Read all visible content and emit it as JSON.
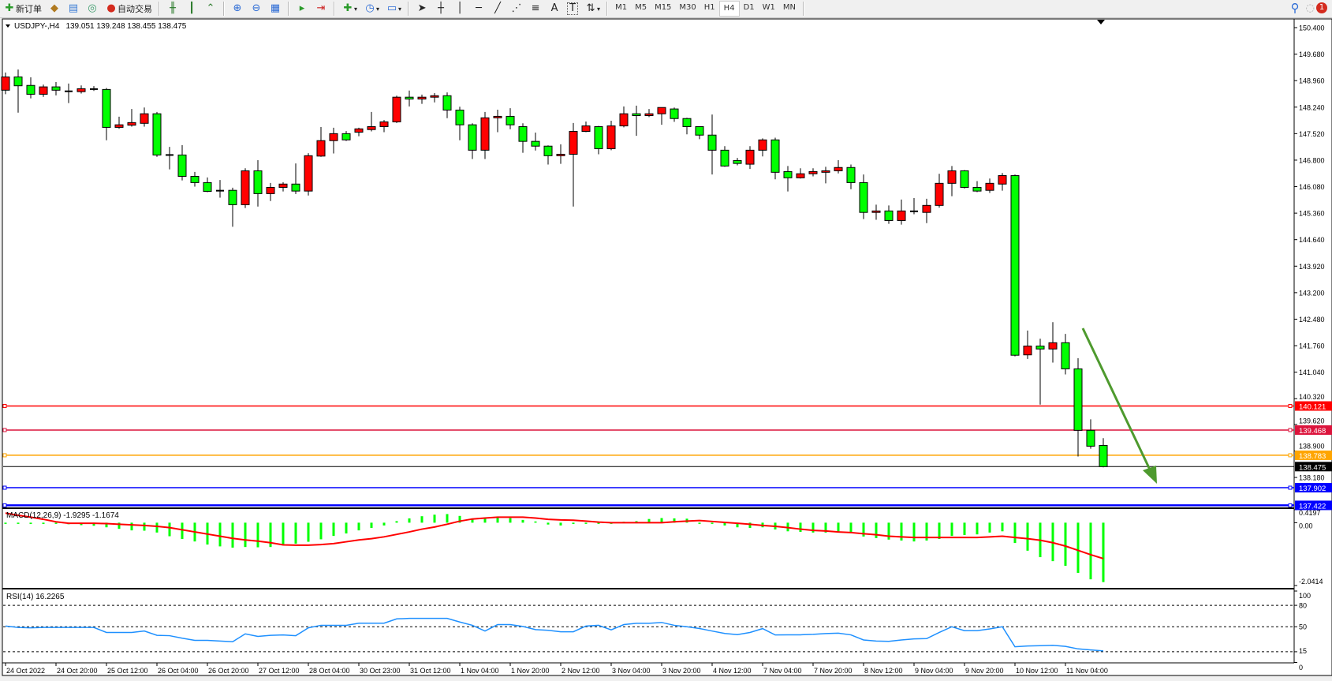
{
  "toolbar": {
    "new_order_label": "新订单",
    "auto_trading_label": "自动交易",
    "icons": [
      "new-order-icon",
      "metaeditor-icon",
      "navigator-icon",
      "signals-icon",
      "auto-trading-icon",
      "bar-chart-icon",
      "candlestick-icon",
      "line-chart-icon",
      "zoom-in-icon",
      "zoom-out-icon",
      "tile-windows-icon",
      "chart-shift-icon",
      "autoscroll-icon",
      "indicators-icon",
      "periods-icon",
      "templates-icon",
      "cursor-icon",
      "crosshair-icon",
      "vertical-line-icon",
      "horizontal-line-icon",
      "trendline-icon",
      "fibonacci-fan-icon",
      "fibonacci-icon",
      "text-icon",
      "text-label-icon",
      "arrows-icon"
    ],
    "text_tool": "A",
    "label_tool": "T",
    "timeframes": [
      "M1",
      "M5",
      "M15",
      "M30",
      "H1",
      "H4",
      "D1",
      "W1",
      "MN"
    ],
    "active_timeframe": "H4",
    "notification_count": "1"
  },
  "chart": {
    "symbol_label": "USDJPY-,H4",
    "ohlc_label": "139.051 139.248 138.455 138.475",
    "bull_color": "#ff0000",
    "bear_color": "#00ff00",
    "price_ticks": [
      "150.400",
      "149.680",
      "148.960",
      "148.240",
      "147.520",
      "146.800",
      "146.080",
      "145.360",
      "144.640",
      "143.920",
      "143.200",
      "142.480",
      "141.760",
      "141.040",
      "140.320",
      "139.620",
      "138.900",
      "138.180"
    ],
    "levels": [
      {
        "price": 140.121,
        "label": "140.121",
        "color": "#ff0000"
      },
      {
        "price": 139.468,
        "label": "139.468",
        "color": "#dc143c"
      },
      {
        "price": 138.783,
        "label": "138.783",
        "color": "#ffa500"
      },
      {
        "price": 137.902,
        "label": "137.902",
        "color": "#0000ff"
      },
      {
        "price": 137.422,
        "label": "137.422",
        "color": "#0000ff"
      }
    ],
    "current_price": {
      "price": 138.475,
      "label": "138.475"
    },
    "trend_arrow_color": "#4e9a2e",
    "candles": [
      [
        148.7,
        149.18,
        148.59,
        149.06
      ],
      [
        149.06,
        149.26,
        148.09,
        148.82
      ],
      [
        148.83,
        149.05,
        148.48,
        148.59
      ],
      [
        148.59,
        148.85,
        148.52,
        148.79
      ],
      [
        148.79,
        148.92,
        148.56,
        148.7
      ],
      [
        148.67,
        148.88,
        148.35,
        148.67
      ],
      [
        148.66,
        148.83,
        148.61,
        148.74
      ],
      [
        148.73,
        148.81,
        148.68,
        148.73
      ],
      [
        148.72,
        148.76,
        147.34,
        147.69
      ],
      [
        147.69,
        147.98,
        147.65,
        147.76
      ],
      [
        147.75,
        148.19,
        147.71,
        147.82
      ],
      [
        147.8,
        148.23,
        147.71,
        148.06
      ],
      [
        148.06,
        148.11,
        146.89,
        146.94
      ],
      [
        146.94,
        147.16,
        146.55,
        146.94
      ],
      [
        146.94,
        147.21,
        146.25,
        146.36
      ],
      [
        146.36,
        146.48,
        146.08,
        146.19
      ],
      [
        146.19,
        146.33,
        145.93,
        145.95
      ],
      [
        145.97,
        146.26,
        145.78,
        145.97
      ],
      [
        145.98,
        146.05,
        144.99,
        145.59
      ],
      [
        145.59,
        146.58,
        145.5,
        146.51
      ],
      [
        146.51,
        146.8,
        145.54,
        145.89
      ],
      [
        145.89,
        146.18,
        145.69,
        146.06
      ],
      [
        146.06,
        146.2,
        145.95,
        146.15
      ],
      [
        146.15,
        146.71,
        145.88,
        145.96
      ],
      [
        145.96,
        146.99,
        145.84,
        146.92
      ],
      [
        146.91,
        147.7,
        146.89,
        147.33
      ],
      [
        147.33,
        147.68,
        146.98,
        147.52
      ],
      [
        147.52,
        147.59,
        147.32,
        147.35
      ],
      [
        147.56,
        147.68,
        147.45,
        147.65
      ],
      [
        147.63,
        148.11,
        147.58,
        147.71
      ],
      [
        147.71,
        147.89,
        147.56,
        147.84
      ],
      [
        147.84,
        148.55,
        147.81,
        148.51
      ],
      [
        148.51,
        148.69,
        148.26,
        148.46
      ],
      [
        148.46,
        148.58,
        148.33,
        148.51
      ],
      [
        148.51,
        148.62,
        148.37,
        148.55
      ],
      [
        148.55,
        148.64,
        147.94,
        148.16
      ],
      [
        148.16,
        148.25,
        147.34,
        147.76
      ],
      [
        147.76,
        147.8,
        146.83,
        147.07
      ],
      [
        147.07,
        148.11,
        146.83,
        147.95
      ],
      [
        147.95,
        148.17,
        147.56,
        147.99
      ],
      [
        147.99,
        148.21,
        147.64,
        147.76
      ],
      [
        147.71,
        147.8,
        147.0,
        147.31
      ],
      [
        147.31,
        147.55,
        147.06,
        147.18
      ],
      [
        147.18,
        147.2,
        146.68,
        146.92
      ],
      [
        146.92,
        147.23,
        146.7,
        146.96
      ],
      [
        146.96,
        147.81,
        145.54,
        147.58
      ],
      [
        147.58,
        147.85,
        147.56,
        147.73
      ],
      [
        147.71,
        147.73,
        146.96,
        147.11
      ],
      [
        147.11,
        147.87,
        147.07,
        147.73
      ],
      [
        147.73,
        148.26,
        147.69,
        148.06
      ],
      [
        148.06,
        148.28,
        147.46,
        148.01
      ],
      [
        148.01,
        148.19,
        147.97,
        148.06
      ],
      [
        148.06,
        148.23,
        147.76,
        148.23
      ],
      [
        148.19,
        148.23,
        147.84,
        147.93
      ],
      [
        147.93,
        147.95,
        147.5,
        147.71
      ],
      [
        147.71,
        147.71,
        147.37,
        147.48
      ],
      [
        147.48,
        148.04,
        146.41,
        147.07
      ],
      [
        147.07,
        147.18,
        146.62,
        146.64
      ],
      [
        146.79,
        146.86,
        146.66,
        146.71
      ],
      [
        146.69,
        147.18,
        146.56,
        147.07
      ],
      [
        147.07,
        147.39,
        146.9,
        147.35
      ],
      [
        147.35,
        147.41,
        146.28,
        146.47
      ],
      [
        146.49,
        146.64,
        145.95,
        146.32
      ],
      [
        146.32,
        146.58,
        146.3,
        146.43
      ],
      [
        146.43,
        146.58,
        146.36,
        146.49
      ],
      [
        146.47,
        146.62,
        146.17,
        146.51
      ],
      [
        146.51,
        146.8,
        146.44,
        146.6
      ],
      [
        146.6,
        146.68,
        146.01,
        146.19
      ],
      [
        146.19,
        146.41,
        145.2,
        145.38
      ],
      [
        145.38,
        145.59,
        145.18,
        145.42
      ],
      [
        145.42,
        145.57,
        145.07,
        145.16
      ],
      [
        145.16,
        145.73,
        145.05,
        145.42
      ],
      [
        145.41,
        145.77,
        145.33,
        145.41
      ],
      [
        145.38,
        145.75,
        145.09,
        145.57
      ],
      [
        145.57,
        146.43,
        145.51,
        146.17
      ],
      [
        146.17,
        146.64,
        145.82,
        146.51
      ],
      [
        146.51,
        146.53,
        146.03,
        146.06
      ],
      [
        146.06,
        146.23,
        145.93,
        145.96
      ],
      [
        145.98,
        146.3,
        145.91,
        146.17
      ],
      [
        146.15,
        146.45,
        145.97,
        146.38
      ],
      [
        146.38,
        146.41,
        141.47,
        141.5
      ],
      [
        141.51,
        142.17,
        141.4,
        141.75
      ],
      [
        141.75,
        141.95,
        140.16,
        141.67
      ],
      [
        141.67,
        142.4,
        141.3,
        141.84
      ],
      [
        141.84,
        142.08,
        140.98,
        141.13
      ],
      [
        141.13,
        141.42,
        138.75,
        139.46
      ],
      [
        139.46,
        139.76,
        138.96,
        139.03
      ],
      [
        139.051,
        139.248,
        138.455,
        138.475
      ]
    ]
  },
  "macd": {
    "label": "MACD(12,26,9) -1.9295 -1.1674",
    "ticks": [
      "0.4197",
      "0.00",
      "-2.0414"
    ],
    "range": [
      -2.0414,
      0.4197
    ],
    "histogram_color": "#00ff00",
    "signal_color": "#ff0000",
    "histogram": [
      -0.02,
      -0.03,
      -0.04,
      -0.04,
      -0.03,
      -0.05,
      -0.08,
      -0.1,
      -0.15,
      -0.2,
      -0.25,
      -0.26,
      -0.32,
      -0.44,
      -0.53,
      -0.61,
      -0.71,
      -0.77,
      -0.81,
      -0.79,
      -0.8,
      -0.79,
      -0.72,
      -0.68,
      -0.62,
      -0.54,
      -0.43,
      -0.35,
      -0.25,
      -0.17,
      -0.09,
      0.05,
      0.14,
      0.21,
      0.26,
      0.28,
      0.22,
      0.14,
      0.17,
      0.18,
      0.15,
      0.09,
      0.04,
      -0.06,
      -0.09,
      -0.04,
      0,
      -0.03,
      -0.01,
      0.03,
      0.05,
      0.12,
      0.15,
      0.14,
      0.13,
      -0.02,
      -0.03,
      -0.09,
      -0.15,
      -0.17,
      -0.15,
      -0.22,
      -0.28,
      -0.3,
      -0.32,
      -0.32,
      -0.32,
      -0.34,
      -0.45,
      -0.5,
      -0.55,
      -0.58,
      -0.61,
      -0.58,
      -0.53,
      -0.43,
      -0.4,
      -0.38,
      -0.32,
      -0.28,
      -0.66,
      -0.91,
      -1.12,
      -1.25,
      -1.4,
      -1.63,
      -1.84,
      -1.9295
    ],
    "signal": [
      0.31,
      0.24,
      0.18,
      0.11,
      0.03,
      -0.02,
      -0.02,
      -0.02,
      -0.03,
      -0.05,
      -0.07,
      -0.09,
      -0.12,
      -0.16,
      -0.23,
      -0.3,
      -0.37,
      -0.44,
      -0.51,
      -0.56,
      -0.6,
      -0.65,
      -0.72,
      -0.73,
      -0.73,
      -0.71,
      -0.68,
      -0.62,
      -0.56,
      -0.52,
      -0.46,
      -0.38,
      -0.3,
      -0.21,
      -0.14,
      -0.05,
      0.05,
      0.12,
      0.15,
      0.18,
      0.18,
      0.18,
      0.15,
      0.11,
      0.09,
      0.08,
      0.05,
      0.02,
      0,
      0,
      0,
      0,
      0,
      0.03,
      0.05,
      0.07,
      0.04,
      0.01,
      -0.02,
      -0.05,
      -0.09,
      -0.12,
      -0.16,
      -0.21,
      -0.25,
      -0.27,
      -0.3,
      -0.32,
      -0.36,
      -0.39,
      -0.44,
      -0.46,
      -0.48,
      -0.48,
      -0.48,
      -0.48,
      -0.48,
      -0.48,
      -0.46,
      -0.44,
      -0.48,
      -0.52,
      -0.57,
      -0.65,
      -0.76,
      -0.9,
      -1.04,
      -1.1674
    ]
  },
  "rsi": {
    "label": "RSI(14) 16.2265",
    "ticks": [
      "100",
      "80",
      "50",
      "15",
      "0"
    ],
    "levels": [
      80,
      50,
      15
    ],
    "color": "#1e90ff",
    "values": [
      51,
      49,
      48.5,
      49,
      49,
      49,
      49,
      49,
      42,
      42,
      42,
      44,
      38,
      37.5,
      34,
      31,
      31,
      30,
      29,
      40,
      36.5,
      38,
      38.6,
      37.5,
      48.5,
      52,
      52,
      52,
      55,
      55,
      55,
      61,
      61.7,
      61.7,
      61.7,
      61.7,
      56.6,
      52,
      44,
      53,
      53,
      50.4,
      46,
      45,
      43,
      43,
      51,
      52,
      45.6,
      53,
      54.8,
      54.8,
      56,
      52,
      50,
      47.5,
      44,
      40.6,
      39,
      42,
      47.4,
      38.5,
      38.7,
      38.7,
      39.4,
      40.5,
      41,
      38.6,
      31.5,
      30,
      29.5,
      31.5,
      33,
      33.4,
      42,
      50,
      44.5,
      44.5,
      47,
      50,
      22,
      23,
      23.5,
      24,
      22.5,
      19,
      17.5,
      16.2265
    ]
  },
  "time_axis": [
    "24 Oct 2022",
    "24 Oct 20:00",
    "25 Oct 12:00",
    "26 Oct 04:00",
    "26 Oct 20:00",
    "27 Oct 12:00",
    "28 Oct 04:00",
    "30 Oct 23:00",
    "31 Oct 12:00",
    "1 Nov 04:00",
    "1 Nov 20:00",
    "2 Nov 12:00",
    "3 Nov 04:00",
    "3 Nov 20:00",
    "4 Nov 12:00",
    "7 Nov 04:00",
    "7 Nov 20:00",
    "8 Nov 12:00",
    "9 Nov 04:00",
    "9 Nov 20:00",
    "10 Nov 12:00",
    "11 Nov 04:00"
  ]
}
